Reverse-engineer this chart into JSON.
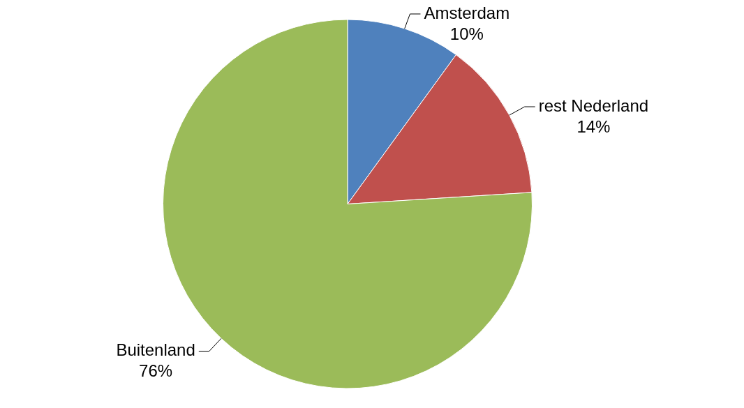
{
  "chart_data": {
    "type": "pie",
    "categories": [
      "Amsterdam",
      "rest Nederland",
      "Buitenland"
    ],
    "values": [
      10,
      14,
      76
    ],
    "colors": [
      "#4f81bd",
      "#c0504d",
      "#9bbb59"
    ],
    "value_labels": [
      "10%",
      "14%",
      "76%"
    ],
    "legend": false
  }
}
